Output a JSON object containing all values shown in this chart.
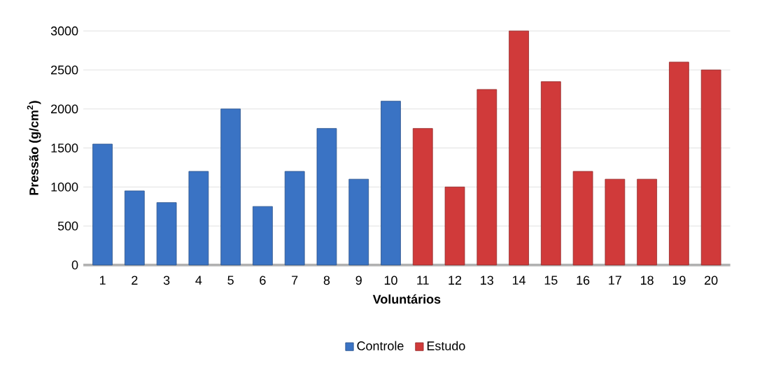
{
  "chart_data": {
    "type": "bar",
    "xlabel": "Voluntários",
    "ylabel": "Pressão (g/cm$^{2}$)",
    "categories": [
      "1",
      "2",
      "3",
      "4",
      "5",
      "6",
      "7",
      "8",
      "9",
      "10",
      "11",
      "12",
      "13",
      "14",
      "15",
      "16",
      "17",
      "18",
      "19",
      "20"
    ],
    "series": [
      {
        "name": "Controle",
        "color": "#3a73c4",
        "values": [
          1550,
          950,
          800,
          1200,
          2000,
          750,
          1200,
          1750,
          1100,
          2100,
          null,
          null,
          null,
          null,
          null,
          null,
          null,
          null,
          null,
          null
        ]
      },
      {
        "name": "Estudo",
        "color": "#d03a3a",
        "values": [
          null,
          null,
          null,
          null,
          null,
          null,
          null,
          null,
          null,
          null,
          1750,
          1000,
          2250,
          3000,
          2350,
          1200,
          1100,
          1100,
          2600,
          2500
        ]
      }
    ],
    "ylim": [
      0,
      3000
    ],
    "yticks": [
      0,
      500,
      1000,
      1500,
      2000,
      2500,
      3000
    ],
    "grid": "y",
    "legend": "bottom"
  }
}
